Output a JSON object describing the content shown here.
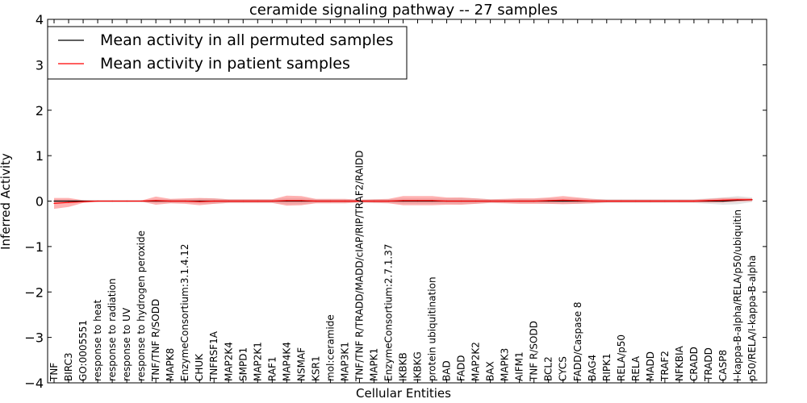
{
  "chart_data": {
    "type": "line",
    "title": "ceramide signaling pathway -- 27 samples",
    "xlabel": "Cellular Entities",
    "ylabel": "Inferred Activity",
    "ylim": [
      -4,
      4
    ],
    "yticks": [
      -4,
      -3,
      -2,
      -1,
      0,
      1,
      2,
      3,
      4
    ],
    "ytick_labels": [
      "−4",
      "−3",
      "−2",
      "−1",
      "0",
      "1",
      "2",
      "3",
      "4"
    ],
    "legend_position": "top-left",
    "categories": [
      "TNF",
      "BIRC3",
      "GO:0005551",
      "response to heat",
      "response to radiation",
      "response to UV",
      "response to hydrogen peroxide",
      "TNF/TNF R/SODD",
      "MAPK8",
      "EnzymeConsortium:3.1.4.12",
      "CHUK",
      "TNFRSF1A",
      "MAP2K4",
      "SMPD1",
      "MAP2K1",
      "RAF1",
      "MAP4K4",
      "NSMAF",
      "KSR1",
      "mol:ceramide",
      "MAP3K1",
      "TNF/TNF R/TRADD/MADD/cIAP/RIP/TRAF2/RAIDD",
      "MAPK1",
      "EnzymeConsortium:2.7.1.37",
      "IKBKB",
      "IKBKG",
      "protein ubiquitination",
      "BAD",
      "FADD",
      "MAP2K2",
      "BAX",
      "MAPK3",
      "AIFM1",
      "TNF R/SODD",
      "BCL2",
      "CYCS",
      "FADD/Caspase 8",
      "BAG4",
      "RIPK1",
      "RELA/p50",
      "RELA",
      "MADD",
      "TRAF2",
      "NFKBIA",
      "CRADD",
      "TRADD",
      "CASP8",
      "I-kappa-B-alpha/RELA/p50/ubiquitin",
      "p50/RELA/I-kappa-B-alpha"
    ],
    "series": [
      {
        "name": "Mean activity in all permuted samples",
        "color": "#000000",
        "band_color": "#bbbbbb",
        "values": [
          0.0,
          0.0,
          0.0,
          0.0,
          0.0,
          0.0,
          0.0,
          0.0,
          0.0,
          0.0,
          0.0,
          0.0,
          0.0,
          0.0,
          0.0,
          0.0,
          0.0,
          0.0,
          0.0,
          0.0,
          0.0,
          0.0,
          0.0,
          0.0,
          0.0,
          0.0,
          0.0,
          0.0,
          0.0,
          0.0,
          0.0,
          0.0,
          0.0,
          0.0,
          0.0,
          0.0,
          0.0,
          0.0,
          0.0,
          0.0,
          0.0,
          0.0,
          0.0,
          0.0,
          0.0,
          0.0,
          0.0,
          0.02,
          0.03
        ],
        "band": [
          0.04,
          0.04,
          0.02,
          0.01,
          0.01,
          0.01,
          0.01,
          0.04,
          0.04,
          0.04,
          0.06,
          0.06,
          0.04,
          0.04,
          0.04,
          0.04,
          0.07,
          0.07,
          0.04,
          0.04,
          0.04,
          0.03,
          0.04,
          0.04,
          0.06,
          0.06,
          0.06,
          0.06,
          0.07,
          0.06,
          0.04,
          0.04,
          0.05,
          0.05,
          0.06,
          0.06,
          0.06,
          0.05,
          0.04,
          0.04,
          0.04,
          0.04,
          0.04,
          0.04,
          0.04,
          0.06,
          0.08,
          0.09,
          0.05
        ]
      },
      {
        "name": "Mean activity in patient samples",
        "color": "#ff0000",
        "band_color": "#ff6666",
        "values": [
          -0.05,
          -0.03,
          -0.01,
          0.0,
          0.0,
          0.0,
          0.0,
          0.01,
          0.0,
          0.0,
          -0.01,
          0.0,
          0.0,
          0.0,
          0.0,
          0.0,
          0.01,
          0.01,
          0.0,
          0.0,
          0.0,
          0.0,
          0.0,
          0.0,
          0.01,
          0.01,
          0.01,
          0.0,
          0.0,
          0.0,
          0.0,
          0.0,
          0.0,
          0.0,
          0.01,
          0.02,
          0.01,
          0.0,
          0.0,
          0.0,
          0.0,
          0.0,
          0.0,
          0.0,
          0.0,
          0.01,
          0.02,
          0.03,
          0.03
        ],
        "band": [
          0.12,
          0.1,
          0.03,
          0.01,
          0.01,
          0.01,
          0.01,
          0.09,
          0.05,
          0.06,
          0.08,
          0.06,
          0.04,
          0.04,
          0.04,
          0.04,
          0.11,
          0.1,
          0.05,
          0.05,
          0.05,
          0.03,
          0.04,
          0.05,
          0.1,
          0.1,
          0.1,
          0.08,
          0.08,
          0.06,
          0.04,
          0.05,
          0.06,
          0.06,
          0.07,
          0.09,
          0.07,
          0.05,
          0.03,
          0.03,
          0.03,
          0.03,
          0.03,
          0.03,
          0.03,
          0.04,
          0.05,
          0.04,
          0.03
        ]
      }
    ]
  }
}
